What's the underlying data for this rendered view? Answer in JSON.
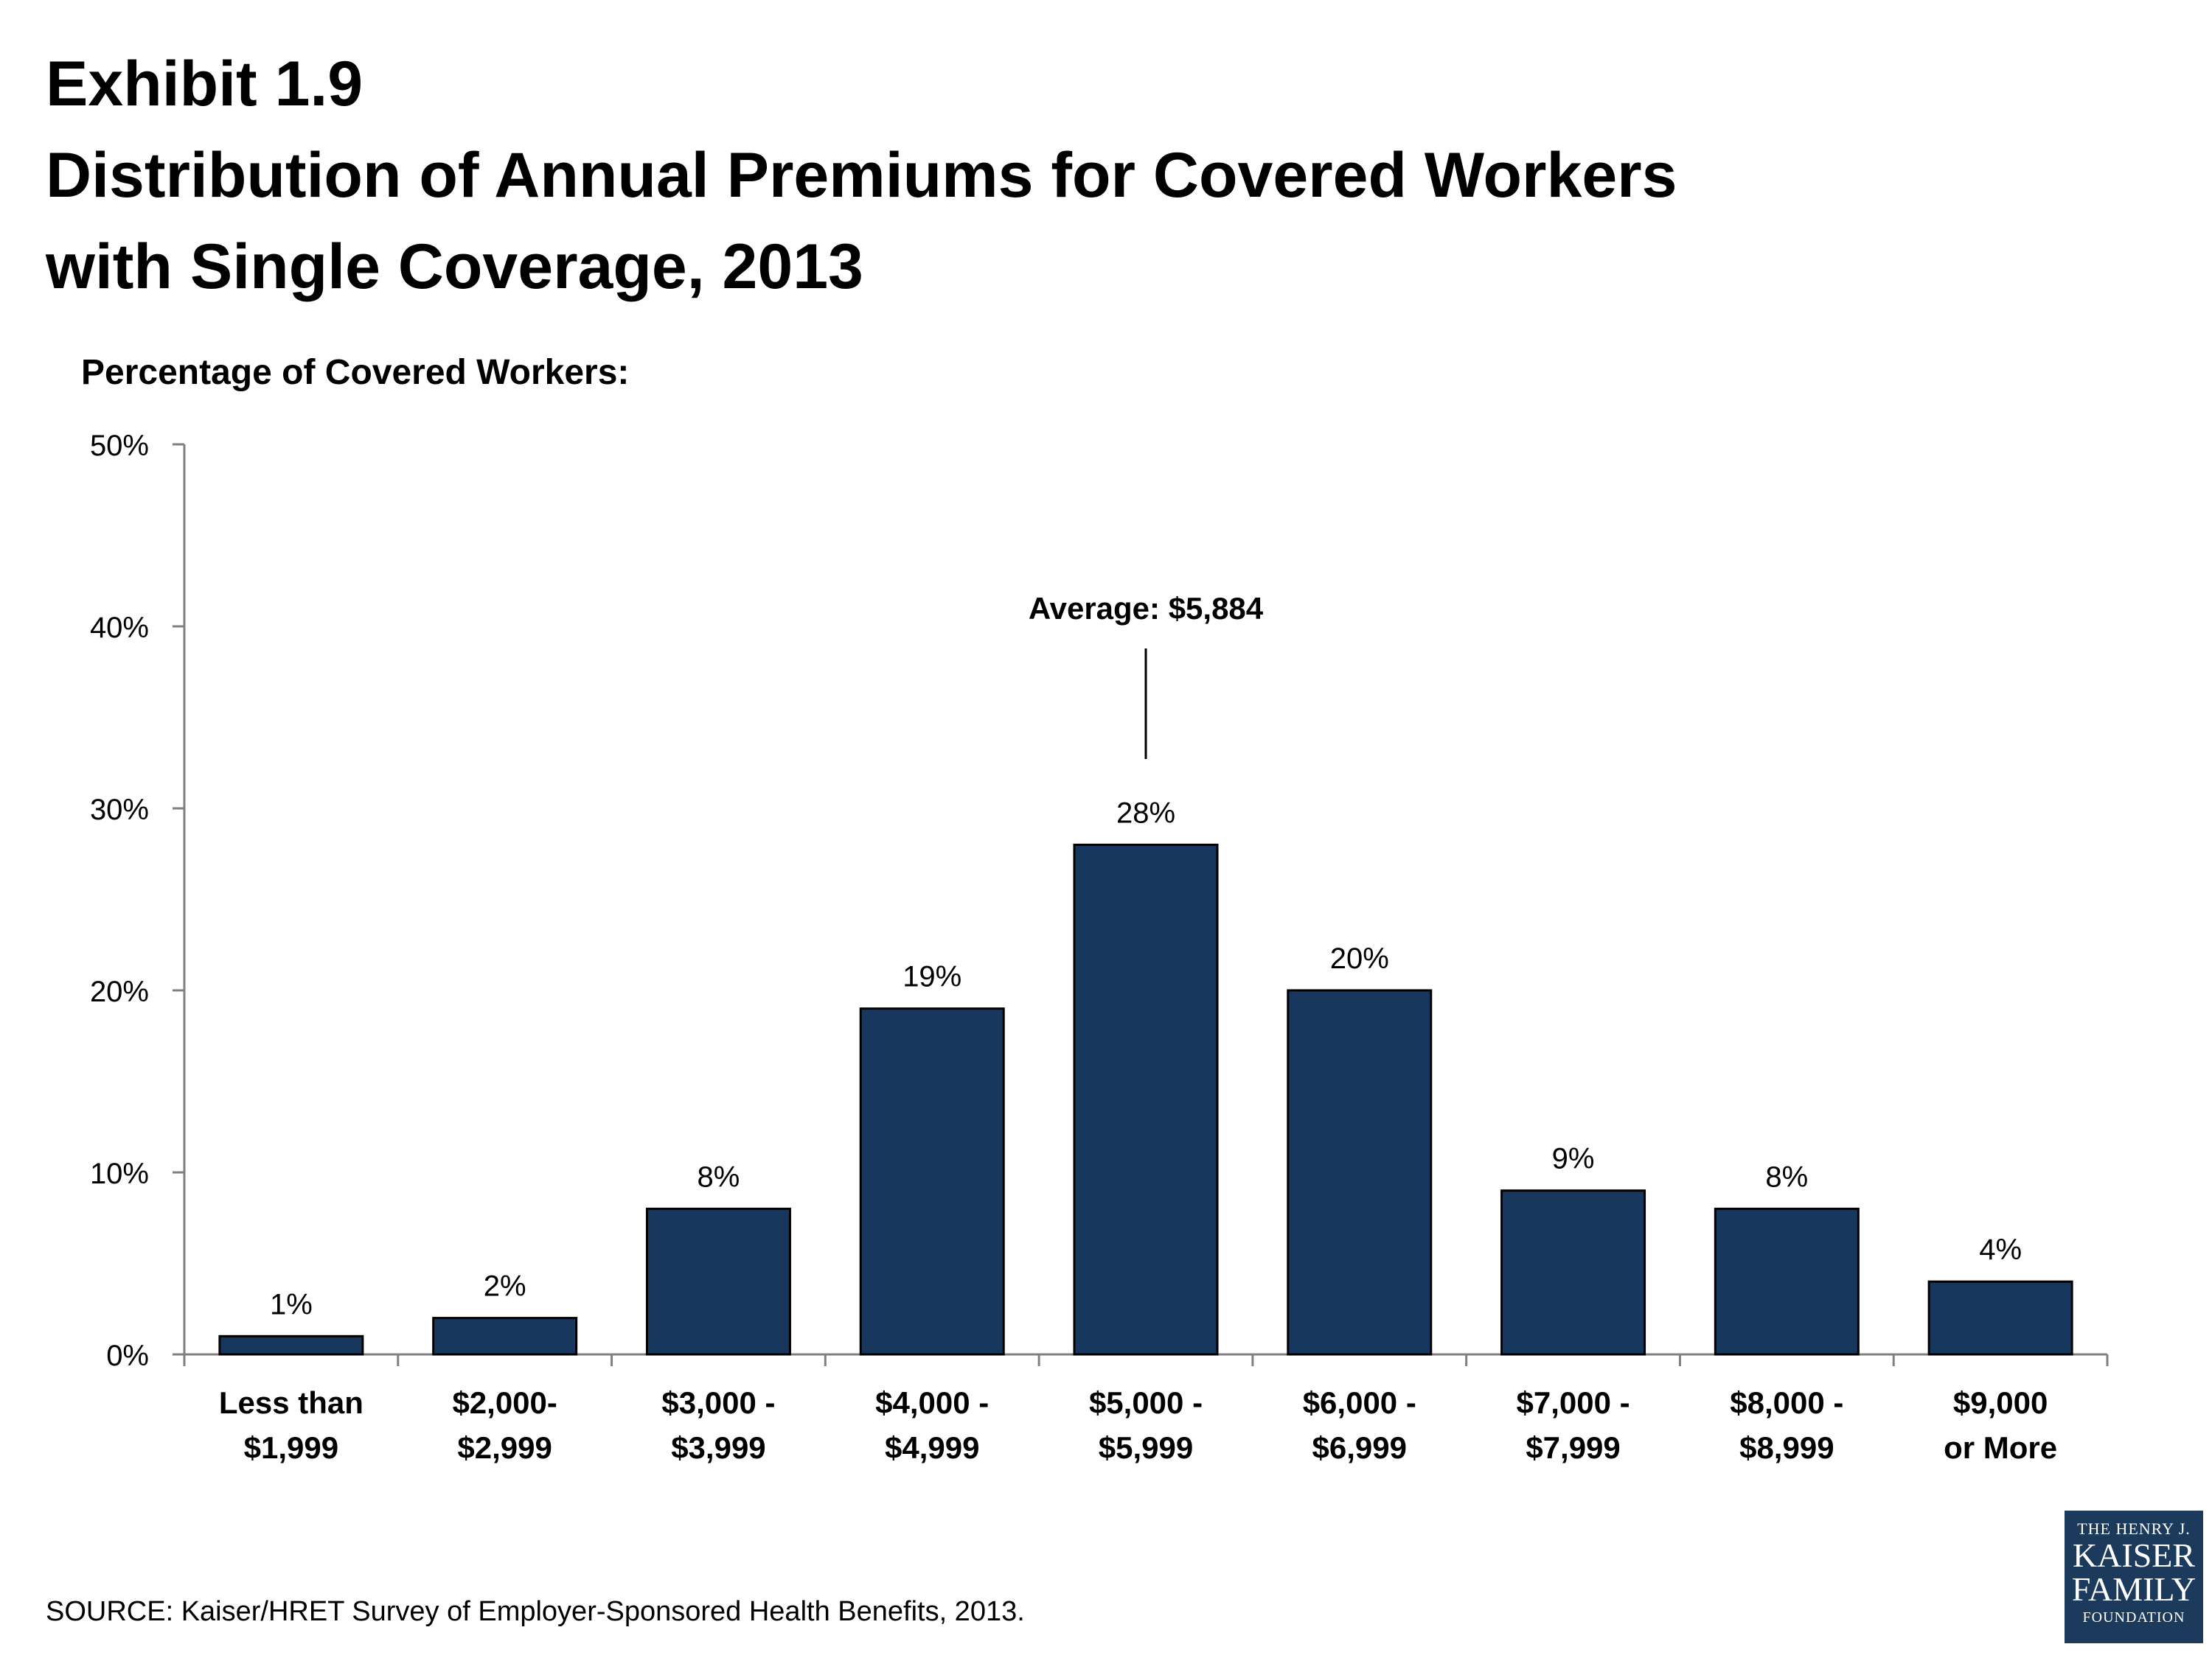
{
  "title_lines": [
    "Exhibit 1.9",
    "Distribution of Annual Premiums for Covered Workers",
    "with Single Coverage, 2013"
  ],
  "source": "SOURCE:  Kaiser/HRET Survey of Employer-Sponsored Health Benefits, 2013.",
  "logo": {
    "line1": "THE HENRY J.",
    "line2": "KAISER",
    "line3": "FAMILY",
    "line4": "FOUNDATION",
    "bg_color": "#1b3a5c"
  },
  "chart_data": {
    "type": "bar",
    "ylabel": "Percentage of Covered Workers:",
    "xlabel": "",
    "ylim": [
      0,
      50
    ],
    "yticks": [
      0,
      10,
      20,
      30,
      40,
      50
    ],
    "ytick_labels": [
      "0%",
      "10%",
      "20%",
      "30%",
      "40%",
      "50%"
    ],
    "categories": [
      [
        "Less than",
        "$1,999"
      ],
      [
        "$2,000-",
        "$2,999"
      ],
      [
        "$3,000 -",
        "$3,999"
      ],
      [
        "$4,000 -",
        "$4,999"
      ],
      [
        "$5,000 -",
        "$5,999"
      ],
      [
        "$6,000 -",
        "$6,999"
      ],
      [
        "$7,000 -",
        "$7,999"
      ],
      [
        "$8,000 -",
        "$8,999"
      ],
      [
        "$9,000",
        "or More"
      ]
    ],
    "values": [
      1,
      2,
      8,
      19,
      28,
      20,
      9,
      8,
      4
    ],
    "value_labels": [
      "1%",
      "2%",
      "8%",
      "19%",
      "28%",
      "20%",
      "9%",
      "8%",
      "4%"
    ],
    "bar_color": "#17375e",
    "grid": false,
    "legend": "none",
    "annotation": {
      "text": "Average: $5,884",
      "category_index": 4
    }
  }
}
